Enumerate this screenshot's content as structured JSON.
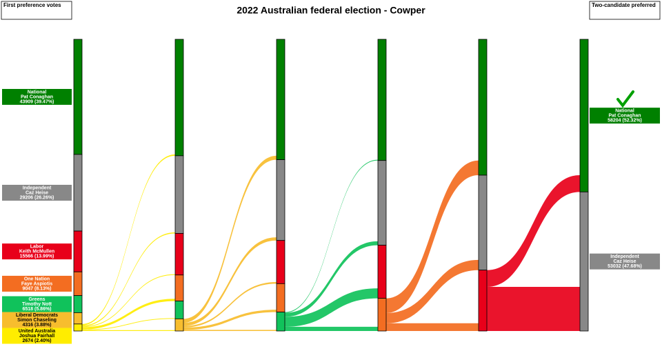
{
  "title": "2022 Australian federal election - Cowper",
  "left_box": "First preference votes",
  "right_box": "Two-candidate preferred",
  "candidates": [
    {
      "party": "National",
      "name": "Pat Conaghan",
      "votes_label": "43909 (39.47%)",
      "color": "#008000",
      "text_color": "#ffffff"
    },
    {
      "party": "Independent",
      "name": "Caz Heise",
      "votes_label": "29206 (26.26%)",
      "color": "#888888",
      "text_color": "#ffffff"
    },
    {
      "party": "Labor",
      "name": "Keith McMullen",
      "votes_label": "15566 (13.99%)",
      "color": "#e8001a",
      "text_color": "#ffffff"
    },
    {
      "party": "One Nation",
      "name": "Faye Aspiotis",
      "votes_label": "9047 (8.13%)",
      "color": "#f36d21",
      "text_color": "#ffffff"
    },
    {
      "party": "Greens",
      "name": "Timothy Nott",
      "votes_label": "6518 (5.86%)",
      "color": "#10c25b",
      "text_color": "#ffffff"
    },
    {
      "party": "Liberal Democrats",
      "name": "Simon Chaseling",
      "votes_label": "4316 (3.88%)",
      "color": "#f7bd2e",
      "text_color": "#000000"
    },
    {
      "party": "United Australia",
      "name": "Joshua Fairhall",
      "votes_label": "2674 (2.40%)",
      "color": "#ffed00",
      "text_color": "#000000"
    }
  ],
  "tcp": [
    {
      "party": "National",
      "name": "Pat Conaghan",
      "votes_label": "58204 (52.32%)"
    },
    {
      "party": "Independent",
      "name": "Caz Heise",
      "votes_label": "53032 (47.68%)"
    }
  ],
  "counts": [
    [
      43909,
      29206,
      15566,
      9047,
      6518,
      4316,
      2674
    ],
    [
      44409,
      29606,
      15866,
      9947,
      6768,
      4640,
      null
    ],
    [
      45909,
      30806,
      16466,
      10847,
      7208,
      null,
      null
    ],
    [
      46209,
      32306,
      20266,
      12455,
      null,
      null,
      null
    ],
    [
      51809,
      36206,
      23221,
      null,
      null,
      null,
      null
    ],
    [
      58204,
      53032,
      null,
      null,
      null,
      null,
      null
    ]
  ],
  "transfers": [
    [
      500,
      400,
      300,
      900,
      250,
      324,
      null
    ],
    [
      1500,
      1200,
      600,
      900,
      440,
      null,
      null
    ],
    [
      300,
      1500,
      3800,
      1608,
      null,
      null,
      null
    ],
    [
      5600,
      3900,
      2955,
      null,
      null,
      null,
      null
    ],
    [
      6395,
      16826,
      null,
      null,
      null,
      null,
      null
    ]
  ]
}
